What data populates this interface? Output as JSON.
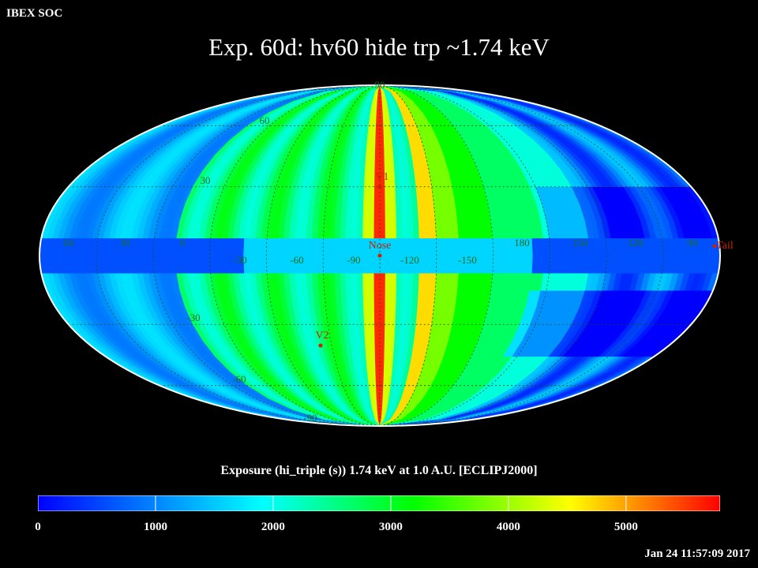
{
  "header": {
    "org": "IBEX SOC",
    "title": "Exp.   60d: hv60 hide trp ~1.74 keV"
  },
  "map": {
    "projection": "Mollweide (ecliptic J2000)",
    "markers": [
      {
        "id": "nose",
        "label": "Nose",
        "color": "#cc2200"
      },
      {
        "id": "tail",
        "label": "Tail",
        "color": "#cc2200"
      },
      {
        "id": "v1",
        "label": "V1",
        "color": "#cc2200"
      },
      {
        "id": "v2",
        "label": "V2",
        "color": "#cc2200"
      }
    ],
    "lon_labels": [
      "60",
      "30",
      "0",
      "-30",
      "-60",
      "-90",
      "-120",
      "-150",
      "180",
      "150",
      "120",
      "90"
    ],
    "lat_labels": [
      "90",
      "60",
      "30",
      "-30",
      "-60",
      "-90"
    ],
    "grid_color": "#1a4a1a",
    "label_color": "#1a6a1a"
  },
  "colorbar": {
    "label": "Exposure (hi_triple (s))  1.74 keV at 1.0 A.U. [ECLIPJ2000]",
    "ticks": [
      "0",
      "1000",
      "2000",
      "3000",
      "4000",
      "5000"
    ],
    "min": 0,
    "max": 5800,
    "colors": [
      "#0000ff",
      "#00ffff",
      "#00ff00",
      "#ffff00",
      "#ff0000"
    ]
  },
  "footer": {
    "timestamp": "Jan 24 11:57:09 2017"
  }
}
